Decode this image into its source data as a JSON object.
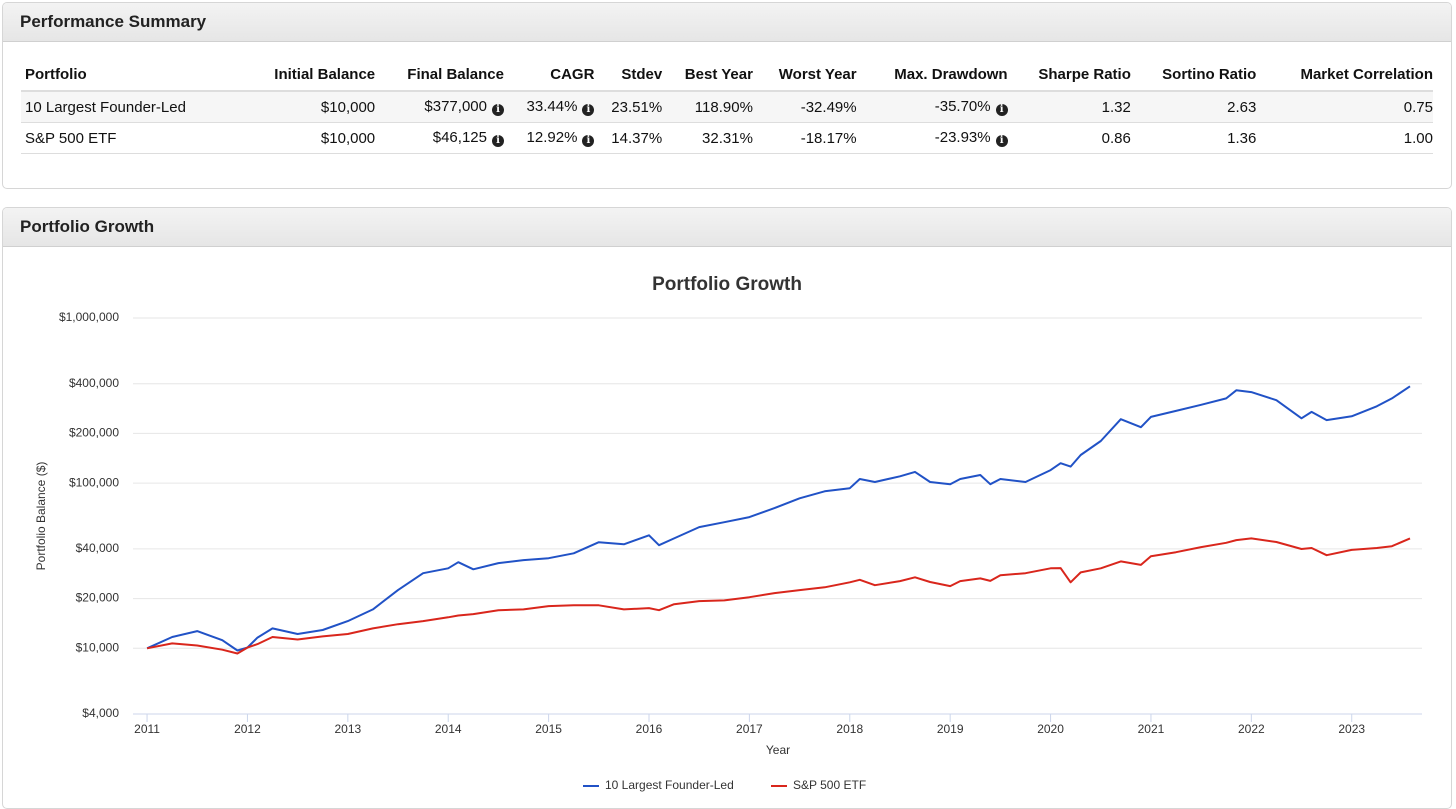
{
  "summary": {
    "title": "Performance Summary",
    "table": {
      "headers": [
        "Portfolio",
        "Initial Balance",
        "Final Balance",
        "CAGR",
        "Stdev",
        "Best Year",
        "Worst Year",
        "Max. Drawdown",
        "Sharpe Ratio",
        "Sortino Ratio",
        "Market Correlation"
      ],
      "rows": [
        [
          "10 Largest Founder-Led",
          "$10,000",
          "$377,000",
          "33.44%",
          "23.51%",
          "118.90%",
          "-32.49%",
          "-35.70%",
          "1.32",
          "2.63",
          "0.75"
        ],
        [
          "S&P 500 ETF",
          "$10,000",
          "$46,125",
          "12.92%",
          "14.37%",
          "32.31%",
          "-18.17%",
          "-23.93%",
          "0.86",
          "1.36",
          "1.00"
        ]
      ]
    }
  },
  "growth": {
    "title": "Portfolio Growth"
  },
  "chart_data": {
    "type": "line",
    "title": "Portfolio Growth",
    "x_label": "Year",
    "y_label": "Portfolio Balance ($)",
    "x": [
      2011,
      2011.25,
      2011.5,
      2011.75,
      2011.9,
      2012,
      2012.1,
      2012.25,
      2012.5,
      2012.75,
      2013,
      2013.25,
      2013.5,
      2013.75,
      2014,
      2014.1,
      2014.25,
      2014.5,
      2014.75,
      2015,
      2015.25,
      2015.5,
      2015.75,
      2016,
      2016.1,
      2016.25,
      2016.5,
      2016.75,
      2017,
      2017.25,
      2017.5,
      2017.75,
      2018,
      2018.1,
      2018.25,
      2018.5,
      2018.65,
      2018.8,
      2019,
      2019.1,
      2019.3,
      2019.4,
      2019.5,
      2019.75,
      2020,
      2020.1,
      2020.2,
      2020.3,
      2020.5,
      2020.7,
      2020.9,
      2021,
      2021.25,
      2021.5,
      2021.75,
      2021.85,
      2022,
      2022.25,
      2022.5,
      2022.6,
      2022.75,
      2023,
      2023.25,
      2023.4,
      2023.58
    ],
    "series": [
      {
        "name": "10 Largest Founder-Led",
        "color": "#2152c6",
        "values": [
          10000,
          11700,
          12700,
          11200,
          9700,
          10100,
          11600,
          13200,
          12200,
          12900,
          14600,
          17200,
          22500,
          28500,
          30500,
          33200,
          30100,
          32800,
          34200,
          35100,
          37600,
          43900,
          42600,
          48300,
          42100,
          46300,
          54200,
          58000,
          62300,
          70600,
          81000,
          89300,
          93200,
          106000,
          101600,
          110000,
          117000,
          101600,
          98600,
          106000,
          112000,
          98600,
          106000,
          101600,
          120000,
          132000,
          126000,
          148000,
          180000,
          244000,
          218000,
          252000,
          274000,
          298000,
          326000,
          365000,
          356000,
          318000,
          247000,
          270000,
          241000,
          254000,
          292000,
          326000,
          386000
        ]
      },
      {
        "name": "S&P 500 ETF",
        "color": "#d9261c",
        "values": [
          10000,
          10700,
          10400,
          9800,
          9300,
          10100,
          10600,
          11700,
          11300,
          11800,
          12200,
          13200,
          14000,
          14600,
          15400,
          15800,
          16100,
          17000,
          17200,
          18000,
          18200,
          18200,
          17200,
          17500,
          17000,
          18500,
          19300,
          19500,
          20400,
          21600,
          22500,
          23400,
          25100,
          26000,
          24100,
          25500,
          26900,
          25200,
          23800,
          25500,
          26500,
          25600,
          27700,
          28500,
          30500,
          30600,
          25100,
          28800,
          30500,
          33600,
          32000,
          36100,
          38200,
          41000,
          43500,
          45200,
          46300,
          44000,
          39900,
          40500,
          36600,
          39400,
          40500,
          41500,
          46300
        ]
      }
    ],
    "xlim": [
      2010.86,
      2023.7
    ],
    "xticks": [
      2011,
      2012,
      2013,
      2014,
      2015,
      2016,
      2017,
      2018,
      2019,
      2020,
      2021,
      2022,
      2023
    ],
    "ylim": [
      4000,
      1000000
    ],
    "yticks": [
      {
        "value": 4000,
        "label": "$4,000"
      },
      {
        "value": 10000,
        "label": "$10,000"
      },
      {
        "value": 20000,
        "label": "$20,000"
      },
      {
        "value": 40000,
        "label": "$40,000"
      },
      {
        "value": 100000,
        "label": "$100,000"
      },
      {
        "value": 200000,
        "label": "$200,000"
      },
      {
        "value": 400000,
        "label": "$400,000"
      },
      {
        "value": 1000000,
        "label": "$1,000,000"
      }
    ],
    "log_scale": true,
    "grid": true,
    "legend": "bottom"
  }
}
